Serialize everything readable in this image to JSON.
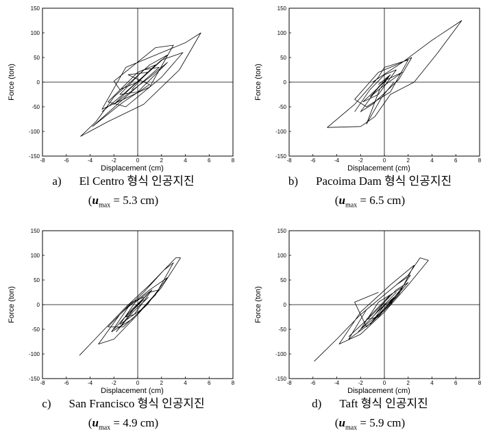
{
  "chart_data": [
    {
      "type": "line",
      "ylabel": "Force (ton)",
      "xlabel": "Displacement (cm)",
      "xlim": [
        -8,
        8
      ],
      "ylim": [
        -150,
        150
      ],
      "xticks": [
        -8,
        -6,
        -4,
        -2,
        0,
        2,
        4,
        6,
        8
      ],
      "yticks": [
        -150,
        -100,
        -50,
        0,
        50,
        100,
        150
      ],
      "caption_letter": "a)",
      "caption_text": "El Centro 형식 인공지진",
      "umax_label": "u",
      "umax_sub": "max",
      "umax_value": "= 5.3 cm",
      "series": [
        {
          "values": [
            [
              0,
              0
            ],
            [
              -1.5,
              -15
            ],
            [
              -2,
              2
            ],
            [
              1.5,
              70
            ],
            [
              3,
              75
            ],
            [
              1,
              -10
            ],
            [
              -3,
              -55
            ],
            [
              -1,
              30
            ],
            [
              2,
              60
            ],
            [
              4,
              80
            ],
            [
              5.3,
              100
            ],
            [
              3.5,
              25
            ],
            [
              0.5,
              -45
            ],
            [
              -2.5,
              -80
            ],
            [
              -4.8,
              -110
            ],
            [
              -3.5,
              -80
            ],
            [
              -2,
              -30
            ],
            [
              1,
              35
            ],
            [
              2.5,
              55
            ],
            [
              0,
              0
            ]
          ]
        },
        {
          "values": [
            [
              -3,
              -60
            ],
            [
              -1,
              -20
            ],
            [
              2,
              45
            ],
            [
              3.8,
              60
            ],
            [
              2,
              10
            ],
            [
              -1,
              -50
            ],
            [
              -2.5,
              -40
            ],
            [
              0,
              20
            ],
            [
              1.5,
              35
            ],
            [
              -0.5,
              -10
            ],
            [
              -2,
              -45
            ],
            [
              1,
              10
            ],
            [
              2.5,
              40
            ],
            [
              0,
              -20
            ],
            [
              -1.5,
              -25
            ],
            [
              0.5,
              25
            ],
            [
              1.8,
              30
            ],
            [
              -1,
              -30
            ],
            [
              -3.8,
              -90
            ],
            [
              -1.2,
              -40
            ],
            [
              1,
              -5
            ],
            [
              -0.8,
              15
            ],
            [
              0.8,
              20
            ],
            [
              -0.5,
              -15
            ]
          ]
        }
      ]
    },
    {
      "type": "line",
      "ylabel": "Force (ton)",
      "xlabel": "Displacement (cm)",
      "xlim": [
        -8,
        8
      ],
      "ylim": [
        -150,
        150
      ],
      "xticks": [
        -8,
        -6,
        -4,
        -2,
        0,
        2,
        4,
        6,
        8
      ],
      "yticks": [
        -150,
        -100,
        -50,
        0,
        50,
        100,
        150
      ],
      "caption_letter": "b)",
      "caption_text": "Pacoima Dam 형식 인공지진",
      "umax_label": "u",
      "umax_sub": "max",
      "umax_value": "= 6.5 cm",
      "series": [
        {
          "values": [
            [
              -1,
              0
            ],
            [
              1.5,
              40
            ],
            [
              4,
              85
            ],
            [
              6.5,
              125
            ],
            [
              4.5,
              60
            ],
            [
              2.5,
              0
            ],
            [
              0.5,
              -25
            ],
            [
              -0.8,
              -70
            ],
            [
              -2,
              -90
            ],
            [
              -4.8,
              -92
            ],
            [
              -2.5,
              -45
            ],
            [
              -0.5,
              10
            ],
            [
              0,
              30
            ],
            [
              2,
              45
            ],
            [
              0.5,
              -20
            ],
            [
              -1.5,
              -50
            ],
            [
              -2.5,
              -35
            ],
            [
              -0.5,
              20
            ],
            [
              1,
              35
            ],
            [
              2.3,
              50
            ],
            [
              1.2,
              5
            ],
            [
              -1,
              -45
            ],
            [
              -2,
              -60
            ],
            [
              -0.5,
              -10
            ],
            [
              0.5,
              15
            ],
            [
              -0.5,
              -5
            ]
          ]
        },
        {
          "values": [
            [
              -2.5,
              -60
            ],
            [
              -1.2,
              -15
            ],
            [
              0,
              15
            ],
            [
              1,
              25
            ],
            [
              -0.5,
              -25
            ],
            [
              -1.8,
              -40
            ],
            [
              0.2,
              5
            ],
            [
              1.5,
              20
            ],
            [
              -0.2,
              -10
            ],
            [
              -1.2,
              -30
            ],
            [
              0.5,
              15
            ],
            [
              -0.4,
              -15
            ],
            [
              -1.5,
              -85
            ],
            [
              -0.2,
              -30
            ],
            [
              0.8,
              0
            ]
          ]
        }
      ]
    },
    {
      "type": "line",
      "ylabel": "Force (ton)",
      "xlabel": "Displacement (cm)",
      "xlim": [
        -8,
        8
      ],
      "ylim": [
        -150,
        150
      ],
      "xticks": [
        -8,
        -6,
        -4,
        -2,
        0,
        2,
        4,
        6,
        8
      ],
      "yticks": [
        -150,
        -100,
        -50,
        0,
        50,
        100,
        150
      ],
      "caption_letter": "c)",
      "caption_text": "San Francisco 형식 인공지진",
      "umax_label": "u",
      "umax_sub": "max",
      "umax_value": "= 4.9 cm",
      "series": [
        {
          "values": [
            [
              -4.9,
              -103
            ],
            [
              -3,
              -55
            ],
            [
              -1,
              -5
            ],
            [
              1,
              40
            ],
            [
              3.2,
              95
            ],
            [
              3.6,
              95
            ],
            [
              2,
              35
            ],
            [
              0,
              -20
            ],
            [
              -2,
              -70
            ],
            [
              -3.3,
              -80
            ],
            [
              -1.5,
              -20
            ],
            [
              0.5,
              25
            ],
            [
              2.2,
              70
            ],
            [
              3,
              85
            ],
            [
              1.5,
              20
            ],
            [
              -0.5,
              -30
            ],
            [
              -2.2,
              -55
            ],
            [
              -0.8,
              -5
            ],
            [
              1,
              30
            ],
            [
              2.5,
              55
            ],
            [
              0.8,
              0
            ],
            [
              -1.2,
              -45
            ],
            [
              -2.5,
              -45
            ],
            [
              -0.5,
              5
            ],
            [
              0.5,
              15
            ]
          ]
        },
        {
          "values": [
            [
              -2,
              -50
            ],
            [
              -0.5,
              -10
            ],
            [
              1,
              25
            ],
            [
              1.8,
              30
            ],
            [
              0.3,
              -10
            ],
            [
              -1.5,
              -40
            ],
            [
              -0.2,
              5
            ],
            [
              1.2,
              30
            ],
            [
              -0.3,
              -20
            ],
            [
              -1,
              -25
            ],
            [
              0.5,
              10
            ],
            [
              -0.6,
              -15
            ],
            [
              0.8,
              20
            ],
            [
              -0.2,
              -5
            ],
            [
              -1.8,
              -55
            ],
            [
              -0.4,
              -15
            ],
            [
              0.9,
              15
            ]
          ]
        }
      ]
    },
    {
      "type": "line",
      "ylabel": "Force (ton)",
      "xlabel": "Displacement (cm)",
      "xlim": [
        -8,
        8
      ],
      "ylim": [
        -150,
        150
      ],
      "xticks": [
        -8,
        -6,
        -4,
        -2,
        0,
        2,
        4,
        6,
        8
      ],
      "yticks": [
        -150,
        -100,
        -50,
        0,
        50,
        100,
        150
      ],
      "caption_letter": "d)",
      "caption_text": "Taft 형식 인공지진",
      "umax_label": "u",
      "umax_sub": "max",
      "umax_value": "= 5.9 cm",
      "series": [
        {
          "values": [
            [
              -5.9,
              -115
            ],
            [
              -4,
              -70
            ],
            [
              -2,
              -20
            ],
            [
              0,
              20
            ],
            [
              2,
              60
            ],
            [
              3,
              95
            ],
            [
              3.7,
              90
            ],
            [
              2,
              40
            ],
            [
              0,
              -15
            ],
            [
              -2,
              -60
            ],
            [
              -3.8,
              -80
            ],
            [
              -2,
              -15
            ],
            [
              0.5,
              40
            ],
            [
              2.5,
              80
            ],
            [
              1.2,
              20
            ],
            [
              -1,
              -35
            ],
            [
              -3,
              -70
            ],
            [
              -1.5,
              -10
            ],
            [
              1,
              40
            ],
            [
              2.2,
              60
            ],
            [
              0.5,
              0
            ],
            [
              -1.5,
              -45
            ],
            [
              -2.5,
              5
            ],
            [
              -0.5,
              25
            ]
          ]
        },
        {
          "values": [
            [
              -3,
              -65
            ],
            [
              -1,
              -20
            ],
            [
              1,
              30
            ],
            [
              2,
              45
            ],
            [
              0,
              -10
            ],
            [
              -2,
              -50
            ],
            [
              -0.5,
              5
            ],
            [
              1.5,
              35
            ],
            [
              -0.5,
              -25
            ],
            [
              -1.5,
              -30
            ],
            [
              0.5,
              20
            ],
            [
              -0.8,
              -20
            ],
            [
              1,
              25
            ],
            [
              -0.2,
              -5
            ],
            [
              -2.2,
              -55
            ],
            [
              -0.6,
              -15
            ],
            [
              0.8,
              15
            ],
            [
              -1.2,
              -40
            ],
            [
              0.2,
              5
            ]
          ]
        }
      ]
    }
  ]
}
